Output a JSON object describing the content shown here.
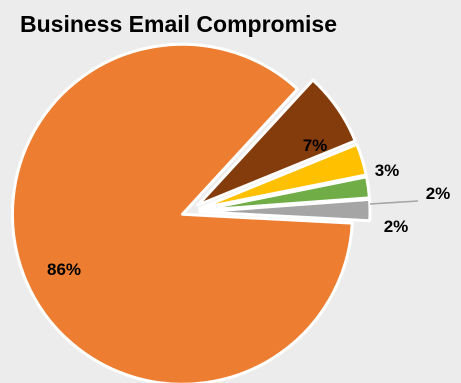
{
  "chart_data": {
    "type": "pie",
    "title": "Business Email Compromise",
    "categories": [
      "",
      "",
      "",
      "",
      ""
    ],
    "values": [
      86,
      7,
      3,
      2,
      2
    ],
    "data_labels": [
      "86%",
      "7%",
      "3%",
      "2%",
      "2%"
    ],
    "colors": [
      "#ED7D31",
      "#843C0C",
      "#FFC000",
      "#70AD47",
      "#A5A5A5"
    ],
    "exploded": true,
    "start_angle_deg": 0,
    "legend": "none"
  }
}
